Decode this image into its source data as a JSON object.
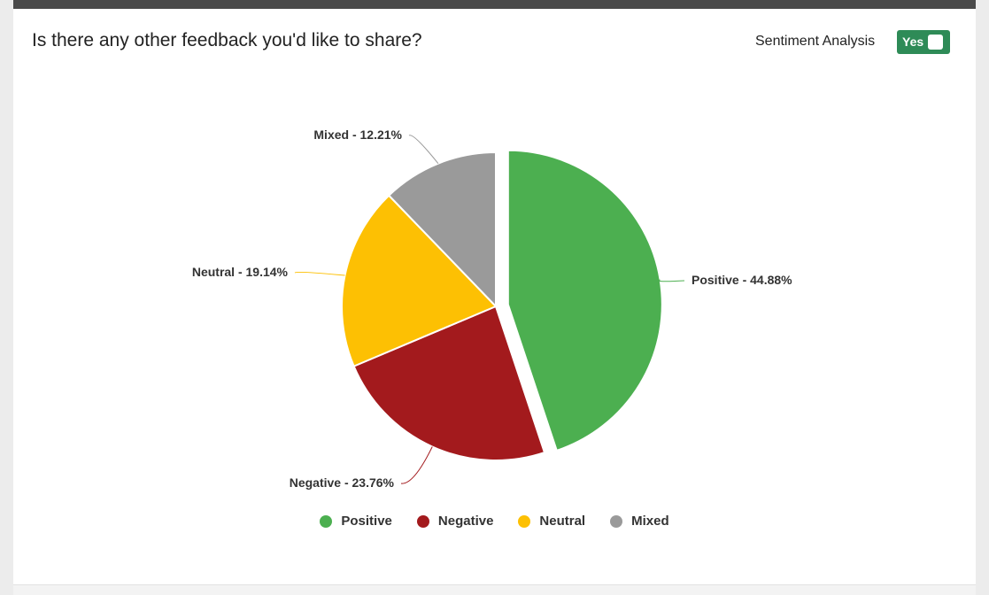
{
  "card": {
    "title": "Is there any other feedback you'd like to share?",
    "sentiment_label": "Sentiment Analysis",
    "toggle_label": "Yes",
    "toggle_color": "#2e8b57"
  },
  "chart_data": {
    "type": "pie",
    "title": "",
    "categories": [
      "Positive",
      "Negative",
      "Neutral",
      "Mixed"
    ],
    "values": [
      44.88,
      23.76,
      19.14,
      12.21
    ],
    "colors": [
      "#4caf50",
      "#a31a1d",
      "#fdc003",
      "#9a9a9a"
    ],
    "data_labels": [
      "Positive - 44.88%",
      "Negative - 23.76%",
      "Neutral - 19.14%",
      "Mixed - 12.21%"
    ],
    "exploded": "Positive",
    "legend_position": "bottom-center"
  }
}
